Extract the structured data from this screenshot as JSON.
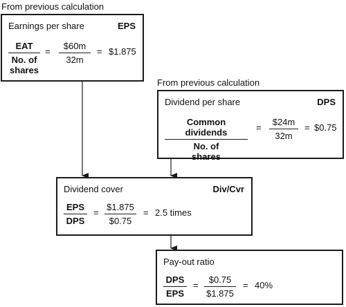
{
  "notes": {
    "top": "From previous calculation",
    "right": "From previous calculation"
  },
  "eps_box": {
    "title": "Earnings per share",
    "abbr": "EPS",
    "formula_num": "EAT",
    "formula_den_line1": "No. of",
    "formula_den_line2": "shares",
    "equals1": "=",
    "value_num": "$60m",
    "value_den": "32m",
    "equals2": "=",
    "result": "$1.875"
  },
  "dps_box": {
    "title": "Dividend per share",
    "abbr": "DPS",
    "formula_num": "Common dividends",
    "formula_den_line1": "No. of",
    "formula_den_line2": "shares",
    "equals1": "=",
    "value_num": "$24m",
    "value_den": "32m",
    "equals2": "=",
    "result": "$0.75"
  },
  "cover_box": {
    "title": "Dividend cover",
    "abbr": "Div/Cvr",
    "formula_num": "EPS",
    "formula_den": "DPS",
    "equals1": "=",
    "value_num": "$1.875",
    "value_den": "$0.75",
    "equals2": "=",
    "result": "2.5 times"
  },
  "payout_box": {
    "title": "Pay-out ratio",
    "formula_num": "DPS",
    "formula_den": "EPS",
    "equals1": "=",
    "value_num": "$0.75",
    "value_den": "$1.875",
    "equals2": "=",
    "result": "40%"
  }
}
